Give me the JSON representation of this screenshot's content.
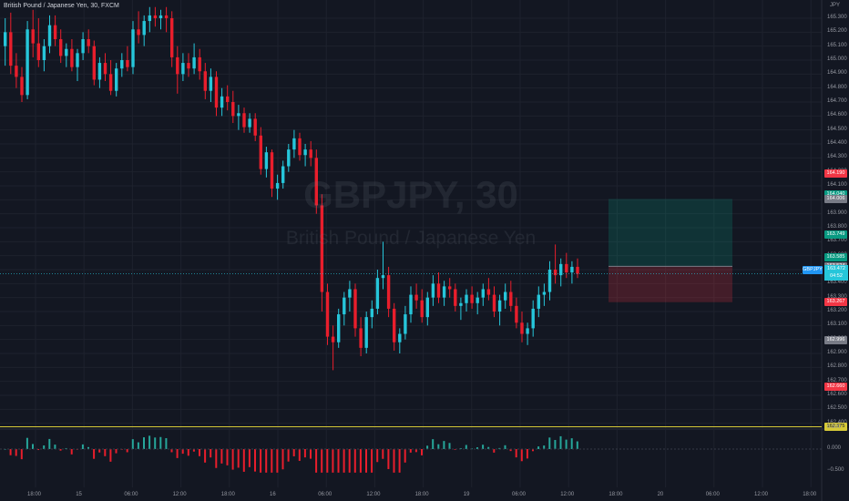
{
  "header": {
    "title": "British Pound / Japanese Yen, 30, FXCM"
  },
  "watermark": {
    "symbol": "GBPJPY, 30",
    "name": "British Pound / Japanese Yen"
  },
  "symbol_tag": "GBPJPY",
  "cursor_price": {
    "price": "163.472",
    "countdown": "04:52"
  },
  "price_axis": {
    "currency": "JPY",
    "labels": [
      "165.300",
      "165.200",
      "165.100",
      "165.000",
      "164.900",
      "164.800",
      "164.700",
      "164.600",
      "164.500",
      "164.400",
      "164.300",
      "164.200",
      "164.100",
      "164.000",
      "163.900",
      "163.800",
      "163.700",
      "163.600",
      "163.500",
      "163.400",
      "163.300",
      "163.200",
      "163.100",
      "163.000",
      "162.900",
      "162.800",
      "162.700",
      "162.600",
      "162.500",
      "162.400"
    ]
  },
  "price_tags": [
    {
      "text": "164.190",
      "value": 164.19,
      "color": "#f23645"
    },
    {
      "text": "164.040",
      "value": 164.04,
      "color": "#089981"
    },
    {
      "text": "164.006",
      "value": 164.006,
      "color": "#787b86"
    },
    {
      "text": "163.749",
      "value": 163.749,
      "color": "#089981"
    },
    {
      "text": "163.585",
      "value": 163.585,
      "color": "#089981"
    },
    {
      "text": "163.524",
      "value": 163.524,
      "color": "#787b86"
    },
    {
      "text": "163.267",
      "value": 163.267,
      "color": "#f23645"
    },
    {
      "text": "162.996",
      "value": 162.996,
      "color": "#787b86"
    },
    {
      "text": "162.660",
      "value": 162.66,
      "color": "#f23645"
    },
    {
      "text": "162.375",
      "value": 162.375,
      "color": "#d6c938"
    }
  ],
  "indicator_axis": {
    "labels": [
      "0.500",
      "0.000",
      "−0.500"
    ],
    "values": [
      0.5,
      0,
      -0.5
    ]
  },
  "time_axis": [
    "18:00",
    "15",
    "06:00",
    "12:00",
    "18:00",
    "16",
    "06:00",
    "12:00",
    "18:00",
    "19",
    "06:00",
    "12:00",
    "18:00",
    "20",
    "06:00",
    "12:00",
    "18:00"
  ],
  "position_tool": {
    "entry": 163.524,
    "target": 164.006,
    "stop": 163.267
  },
  "chart_data": {
    "type": "candlestick",
    "symbol": "GBPJPY",
    "interval": "30",
    "price_range": [
      162.34,
      165.38
    ],
    "candles": [
      [
        165.1,
        165.3,
        164.96,
        165.2
      ],
      [
        165.2,
        165.34,
        164.9,
        164.96
      ],
      [
        164.96,
        165.05,
        164.8,
        164.88
      ],
      [
        164.88,
        164.95,
        164.7,
        164.75
      ],
      [
        164.75,
        165.28,
        164.72,
        165.22
      ],
      [
        165.22,
        165.36,
        165.02,
        165.12
      ],
      [
        165.12,
        165.3,
        164.95,
        165.0
      ],
      [
        165.0,
        165.15,
        164.92,
        165.1
      ],
      [
        165.1,
        165.32,
        165.05,
        165.25
      ],
      [
        165.25,
        165.32,
        165.1,
        165.15
      ],
      [
        165.15,
        165.22,
        164.98,
        165.03
      ],
      [
        165.03,
        165.12,
        164.95,
        165.08
      ],
      [
        165.08,
        165.15,
        164.92,
        164.95
      ],
      [
        164.95,
        165.08,
        164.85,
        165.05
      ],
      [
        165.05,
        165.2,
        165.0,
        165.15
      ],
      [
        165.15,
        165.22,
        165.05,
        165.1
      ],
      [
        165.1,
        165.14,
        164.82,
        164.86
      ],
      [
        164.86,
        165.02,
        164.8,
        164.98
      ],
      [
        164.98,
        165.05,
        164.85,
        164.9
      ],
      [
        164.9,
        165.0,
        164.75,
        164.78
      ],
      [
        164.78,
        164.98,
        164.74,
        164.94
      ],
      [
        164.94,
        165.05,
        164.88,
        165.0
      ],
      [
        165.0,
        165.1,
        164.92,
        164.95
      ],
      [
        164.95,
        165.28,
        164.9,
        165.22
      ],
      [
        165.22,
        165.35,
        165.12,
        165.18
      ],
      [
        165.18,
        165.32,
        165.1,
        165.28
      ],
      [
        165.28,
        165.38,
        165.2,
        165.32
      ],
      [
        165.32,
        165.38,
        165.24,
        165.3
      ],
      [
        165.3,
        165.36,
        165.22,
        165.32
      ],
      [
        165.32,
        165.38,
        165.2,
        165.3
      ],
      [
        165.3,
        165.35,
        164.95,
        165.02
      ],
      [
        165.02,
        165.1,
        164.76,
        164.9
      ],
      [
        164.9,
        165.05,
        164.85,
        164.98
      ],
      [
        164.98,
        165.05,
        164.88,
        164.94
      ],
      [
        164.94,
        165.12,
        164.9,
        165.02
      ],
      [
        165.02,
        165.08,
        164.86,
        164.92
      ],
      [
        164.92,
        164.98,
        164.72,
        164.78
      ],
      [
        164.78,
        164.94,
        164.7,
        164.88
      ],
      [
        164.88,
        164.92,
        164.6,
        164.66
      ],
      [
        164.66,
        164.8,
        164.6,
        164.74
      ],
      [
        164.74,
        164.82,
        164.64,
        164.7
      ],
      [
        164.7,
        164.78,
        164.55,
        164.6
      ],
      [
        164.6,
        164.68,
        164.5,
        164.62
      ],
      [
        164.62,
        164.66,
        164.48,
        164.52
      ],
      [
        164.52,
        164.62,
        164.48,
        164.58
      ],
      [
        164.58,
        164.62,
        164.42,
        164.46
      ],
      [
        164.46,
        164.52,
        164.18,
        164.22
      ],
      [
        164.22,
        164.38,
        164.16,
        164.34
      ],
      [
        164.34,
        164.36,
        164.02,
        164.08
      ],
      [
        164.08,
        164.18,
        164.0,
        164.12
      ],
      [
        164.12,
        164.28,
        164.08,
        164.24
      ],
      [
        164.24,
        164.4,
        164.2,
        164.36
      ],
      [
        164.36,
        164.5,
        164.3,
        164.44
      ],
      [
        164.44,
        164.48,
        164.28,
        164.32
      ],
      [
        164.32,
        164.4,
        164.24,
        164.36
      ],
      [
        164.36,
        164.42,
        164.24,
        164.3
      ],
      [
        164.3,
        164.36,
        163.9,
        163.96
      ],
      [
        163.96,
        164.04,
        163.2,
        163.34
      ],
      [
        163.34,
        163.4,
        162.96,
        163.02
      ],
      [
        163.02,
        163.1,
        162.78,
        162.98
      ],
      [
        162.98,
        163.22,
        162.94,
        163.18
      ],
      [
        163.18,
        163.34,
        163.1,
        163.3
      ],
      [
        163.3,
        163.42,
        163.2,
        163.36
      ],
      [
        163.36,
        163.4,
        163.02,
        163.08
      ],
      [
        163.08,
        163.16,
        162.88,
        162.94
      ],
      [
        162.94,
        163.2,
        162.9,
        163.16
      ],
      [
        163.16,
        163.28,
        163.08,
        163.22
      ],
      [
        163.22,
        163.5,
        163.18,
        163.44
      ],
      [
        163.44,
        163.7,
        163.36,
        163.46
      ],
      [
        163.46,
        163.52,
        163.16,
        163.22
      ],
      [
        163.22,
        163.26,
        162.92,
        162.98
      ],
      [
        162.98,
        163.08,
        162.9,
        163.04
      ],
      [
        163.04,
        163.24,
        163.0,
        163.18
      ],
      [
        163.18,
        163.38,
        163.12,
        163.32
      ],
      [
        163.32,
        163.4,
        163.22,
        163.28
      ],
      [
        163.28,
        163.36,
        163.12,
        163.16
      ],
      [
        163.16,
        163.34,
        163.1,
        163.3
      ],
      [
        163.3,
        163.46,
        163.24,
        163.4
      ],
      [
        163.4,
        163.48,
        163.26,
        163.3
      ],
      [
        163.3,
        163.42,
        163.24,
        163.38
      ],
      [
        163.38,
        163.44,
        163.3,
        163.36
      ],
      [
        163.36,
        163.4,
        163.2,
        163.24
      ],
      [
        163.24,
        163.3,
        163.14,
        163.26
      ],
      [
        163.26,
        163.36,
        163.2,
        163.32
      ],
      [
        163.32,
        163.38,
        163.22,
        163.26
      ],
      [
        163.26,
        163.34,
        163.18,
        163.3
      ],
      [
        163.3,
        163.4,
        163.24,
        163.36
      ],
      [
        163.36,
        163.44,
        163.28,
        163.32
      ],
      [
        163.32,
        163.38,
        163.16,
        163.2
      ],
      [
        163.2,
        163.32,
        163.1,
        163.28
      ],
      [
        163.28,
        163.4,
        163.22,
        163.34
      ],
      [
        163.34,
        163.42,
        163.2,
        163.24
      ],
      [
        163.24,
        163.3,
        163.08,
        163.12
      ],
      [
        163.12,
        163.2,
        162.98,
        163.04
      ],
      [
        163.04,
        163.12,
        162.96,
        163.08
      ],
      [
        163.08,
        163.28,
        163.02,
        163.22
      ],
      [
        163.22,
        163.38,
        163.16,
        163.32
      ],
      [
        163.32,
        163.4,
        163.24,
        163.34
      ],
      [
        163.34,
        163.56,
        163.28,
        163.5
      ],
      [
        163.5,
        163.68,
        163.4,
        163.46
      ],
      [
        163.46,
        163.58,
        163.38,
        163.54
      ],
      [
        163.54,
        163.62,
        163.44,
        163.48
      ],
      [
        163.48,
        163.56,
        163.4,
        163.52
      ],
      [
        163.52,
        163.58,
        163.44,
        163.47
      ]
    ]
  }
}
